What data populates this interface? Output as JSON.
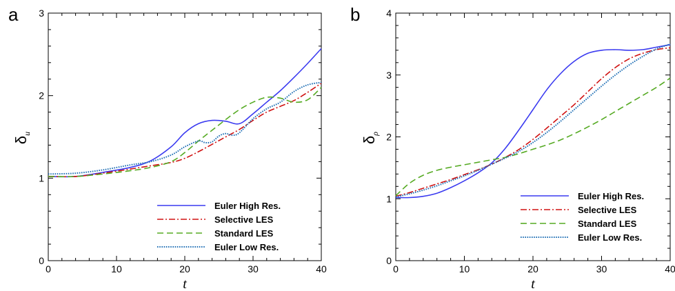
{
  "chart_data": [
    {
      "panel_label": "a",
      "type": "line",
      "xlabel": "t",
      "ylabel_symbol": "δ",
      "ylabel_subscript": "u",
      "xlim": [
        0,
        40
      ],
      "ylim": [
        0,
        3
      ],
      "xticks": [
        0,
        10,
        20,
        30,
        40
      ],
      "yticks": [
        0,
        1,
        2,
        3
      ],
      "grid": false,
      "legend_position": "bottom-right",
      "series": [
        {
          "name": "Euler High Res.",
          "color": "#3a3af0",
          "dash": "solid",
          "x": [
            0,
            4,
            8,
            12,
            15,
            18,
            20,
            22,
            24,
            26,
            28,
            30,
            32,
            34,
            36,
            38,
            40
          ],
          "y": [
            1.02,
            1.02,
            1.07,
            1.13,
            1.21,
            1.38,
            1.55,
            1.66,
            1.7,
            1.69,
            1.66,
            1.78,
            1.92,
            2.06,
            2.22,
            2.39,
            2.57
          ]
        },
        {
          "name": "Selective LES",
          "color": "#d01010",
          "dash": "dashdot",
          "x": [
            0,
            4,
            8,
            12,
            15,
            18,
            20,
            22,
            24,
            26,
            28,
            30,
            32,
            34,
            36,
            38,
            40
          ],
          "y": [
            1.02,
            1.02,
            1.06,
            1.11,
            1.15,
            1.19,
            1.24,
            1.32,
            1.41,
            1.5,
            1.59,
            1.7,
            1.8,
            1.87,
            1.94,
            2.04,
            2.15
          ]
        },
        {
          "name": "Standard LES",
          "color": "#55aa22",
          "dash": "dashed",
          "x": [
            0,
            4,
            8,
            12,
            15,
            18,
            20,
            22,
            24,
            26,
            28,
            30,
            32,
            34,
            36,
            38,
            40
          ],
          "y": [
            1.02,
            1.02,
            1.05,
            1.09,
            1.13,
            1.2,
            1.31,
            1.45,
            1.58,
            1.71,
            1.83,
            1.92,
            1.98,
            1.97,
            1.92,
            1.95,
            2.1
          ]
        },
        {
          "name": "Euler Low Res.",
          "color": "#1f6fb5",
          "dash": "dotted",
          "x": [
            0,
            4,
            8,
            12,
            15,
            18,
            20,
            22,
            23,
            24,
            25,
            26,
            27,
            28,
            30,
            32,
            34,
            36,
            38,
            40
          ],
          "y": [
            1.05,
            1.06,
            1.1,
            1.16,
            1.2,
            1.28,
            1.38,
            1.45,
            1.43,
            1.44,
            1.51,
            1.54,
            1.52,
            1.55,
            1.72,
            1.84,
            1.92,
            2.05,
            2.13,
            2.16
          ]
        }
      ]
    },
    {
      "panel_label": "b",
      "type": "line",
      "xlabel": "t",
      "ylabel_symbol": "δ",
      "ylabel_subscript": "ρ",
      "xlim": [
        0,
        40
      ],
      "ylim": [
        0,
        4
      ],
      "xticks": [
        0,
        10,
        20,
        30,
        40
      ],
      "yticks": [
        0,
        1,
        2,
        3,
        4
      ],
      "grid": false,
      "legend_position": "bottom-right",
      "series": [
        {
          "name": "Euler High Res.",
          "color": "#3a3af0",
          "dash": "solid",
          "x": [
            0,
            2,
            4,
            6,
            8,
            10,
            12,
            14,
            16,
            18,
            20,
            22,
            24,
            26,
            28,
            30,
            32,
            34,
            36,
            38,
            40
          ],
          "y": [
            1.02,
            1.02,
            1.04,
            1.09,
            1.18,
            1.29,
            1.42,
            1.58,
            1.82,
            2.12,
            2.44,
            2.76,
            3.02,
            3.22,
            3.35,
            3.4,
            3.41,
            3.4,
            3.41,
            3.45,
            3.49
          ]
        },
        {
          "name": "Selective LES",
          "color": "#d01010",
          "dash": "dashdot",
          "x": [
            0,
            2,
            4,
            6,
            8,
            10,
            12,
            14,
            16,
            18,
            20,
            22,
            24,
            26,
            28,
            30,
            32,
            34,
            36,
            38,
            40
          ],
          "y": [
            1.04,
            1.1,
            1.17,
            1.24,
            1.31,
            1.39,
            1.47,
            1.56,
            1.67,
            1.8,
            1.96,
            2.14,
            2.33,
            2.52,
            2.73,
            2.94,
            3.12,
            3.26,
            3.35,
            3.41,
            3.44
          ]
        },
        {
          "name": "Standard LES",
          "color": "#55aa22",
          "dash": "dashed",
          "x": [
            0,
            2,
            4,
            6,
            8,
            10,
            12,
            14,
            16,
            18,
            20,
            22,
            24,
            26,
            28,
            30,
            32,
            34,
            36,
            38,
            40
          ],
          "y": [
            1.05,
            1.25,
            1.38,
            1.46,
            1.51,
            1.55,
            1.59,
            1.63,
            1.67,
            1.73,
            1.8,
            1.87,
            1.95,
            2.05,
            2.16,
            2.28,
            2.41,
            2.54,
            2.67,
            2.8,
            2.95
          ]
        },
        {
          "name": "Euler Low Res.",
          "color": "#1f6fb5",
          "dash": "dotted",
          "x": [
            0,
            2,
            4,
            6,
            8,
            10,
            12,
            14,
            16,
            18,
            20,
            22,
            24,
            26,
            28,
            30,
            32,
            34,
            36,
            38,
            40
          ],
          "y": [
            1.03,
            1.08,
            1.14,
            1.21,
            1.29,
            1.37,
            1.46,
            1.56,
            1.66,
            1.77,
            1.91,
            2.07,
            2.25,
            2.44,
            2.63,
            2.82,
            3.0,
            3.16,
            3.3,
            3.42,
            3.5
          ]
        }
      ]
    }
  ]
}
